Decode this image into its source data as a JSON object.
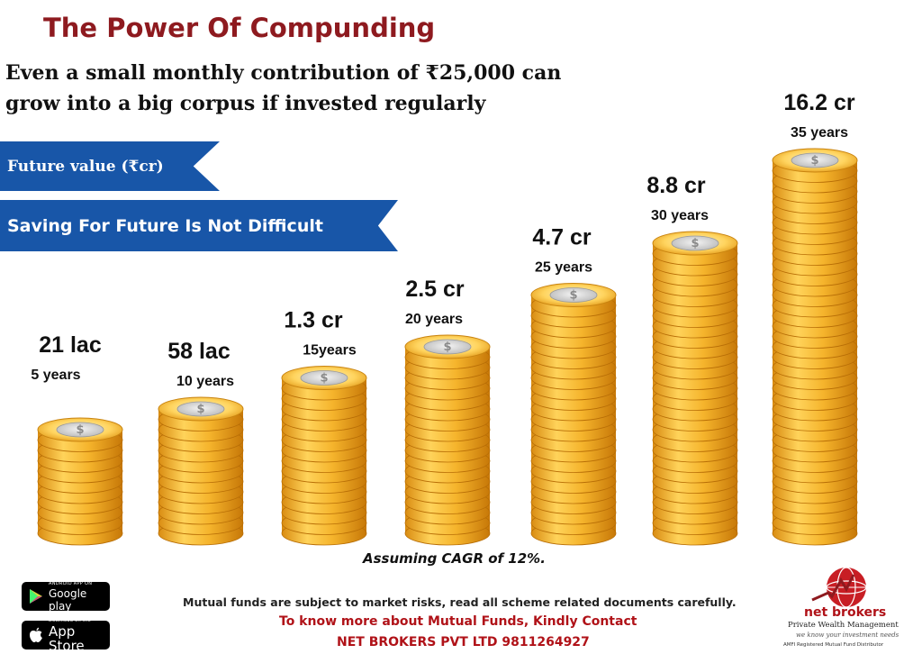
{
  "header": {
    "title": "The Power Of  Compunding",
    "subtitle": "Even a small monthly contribution of ₹25,000 can grow into a big corpus if invested regularly"
  },
  "ribbons": {
    "future_value": "Future value (₹cr)",
    "saving": "Saving For Future Is Not Difficult"
  },
  "chart_data": {
    "type": "bar",
    "categories": [
      "5 years",
      "10 years",
      "15years",
      "20 years",
      "25 years",
      "30 years",
      "35 years"
    ],
    "value_labels": [
      "21 lac",
      "58 lac",
      "1.3 cr",
      "2.5 cr",
      "4.7 cr",
      "8.8 cr",
      "16.2 cr"
    ],
    "values": [
      0.21,
      0.58,
      1.3,
      2.5,
      4.7,
      8.8,
      16.2
    ],
    "ylabel": "Future value (₹cr)",
    "bar_style": "stacked gold coins with $ symbol on top coin"
  },
  "footer": {
    "note": "Assuming CAGR of 12%.",
    "disclaimer": "Mutual funds are subject to market risks, read all scheme related documents carefully.",
    "contact": "To know more about Mutual Funds, Kindly Contact",
    "company": "NET BROKERS PVT LTD  9811264927"
  },
  "badges": {
    "google_small": "ANDROID APP ON",
    "google_big": "Google play",
    "apple_small": "Download on the",
    "apple_big": "App Store"
  },
  "logo": {
    "brand": "net brokers",
    "tagline": "Private Wealth Management",
    "motto": "we know your investment needs",
    "amfi": "AMFI Registered Mutual Fund Distributor"
  },
  "colors": {
    "title": "#8e1a1f",
    "ribbon": "#1856a8",
    "coin": "#f2b632",
    "contact": "#b01218"
  }
}
